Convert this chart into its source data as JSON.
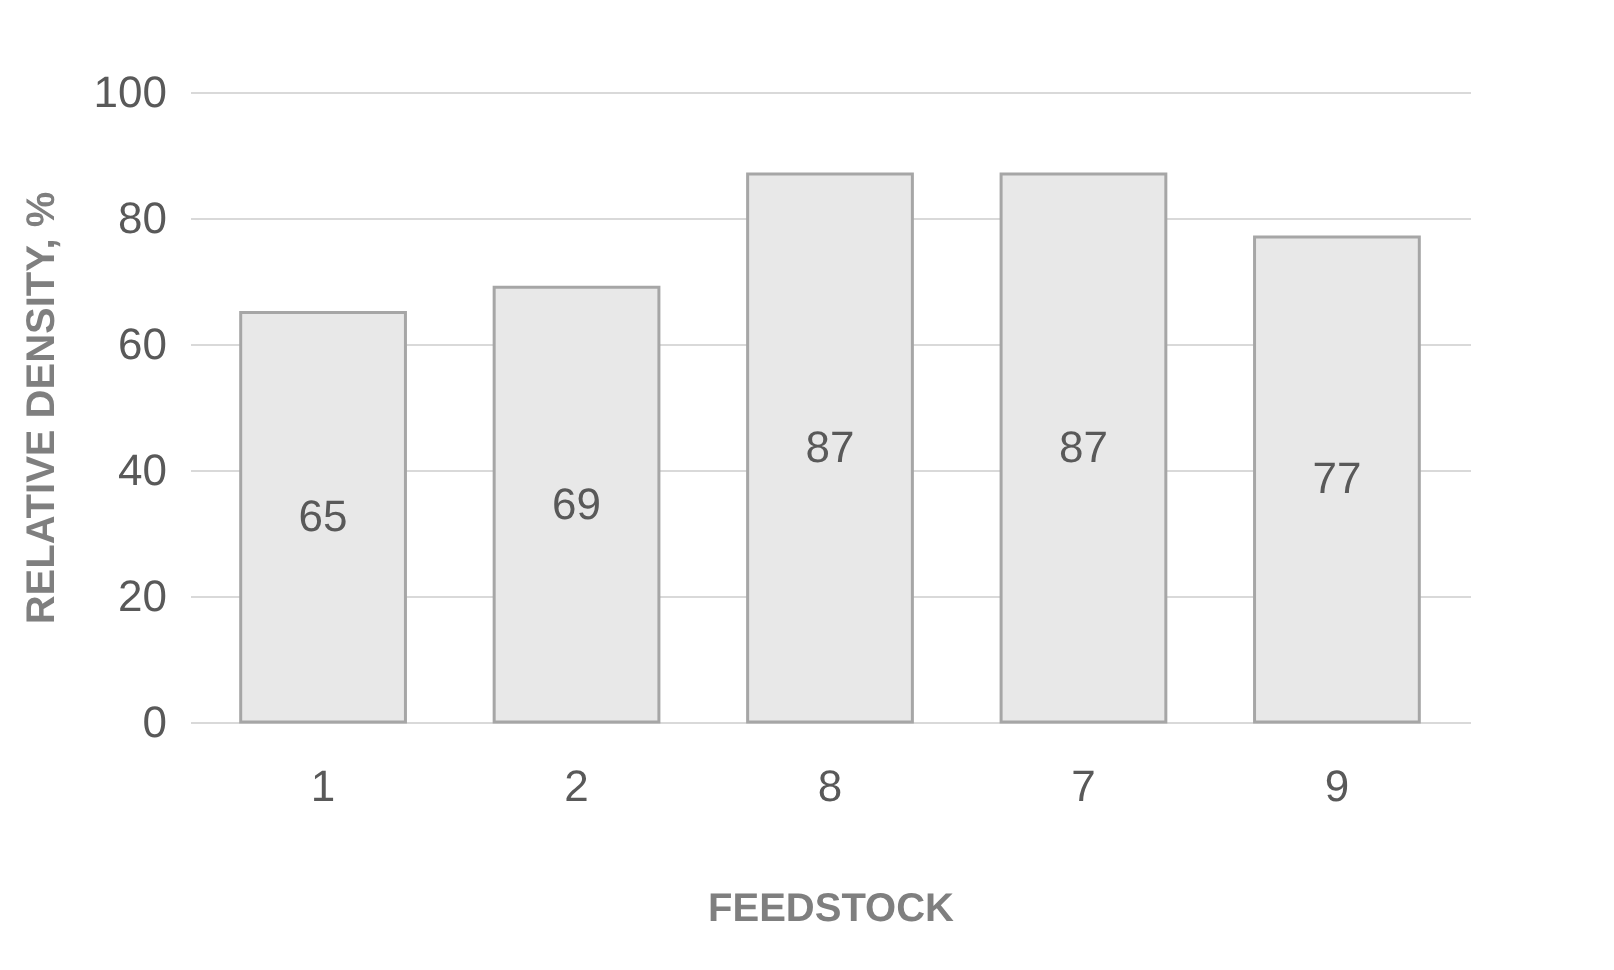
{
  "chart_data": {
    "type": "bar",
    "xlabel": "FEEDSTOCK",
    "ylabel": "RELATIVE DENSITY, %",
    "categories": [
      "1",
      "2",
      "8",
      "7",
      "9"
    ],
    "values": [
      65,
      69,
      87,
      87,
      77
    ],
    "color": "#e8e8e8",
    "ylim": [
      0,
      100
    ],
    "yticks": [
      0,
      20,
      40,
      60,
      80,
      100
    ],
    "grid": "y",
    "data_labels": true
  }
}
